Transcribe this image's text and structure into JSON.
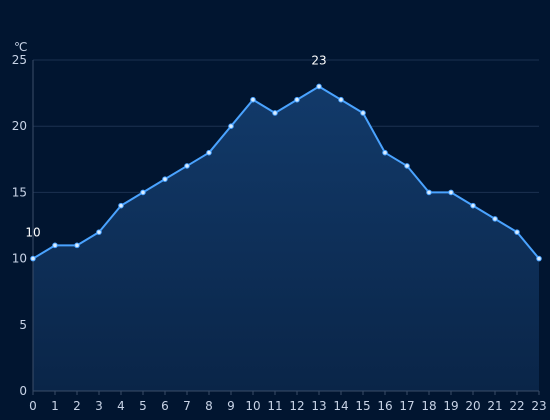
{
  "colors": {
    "background": "#011530",
    "line": "#4aa3ff",
    "area_top": "#123a6a",
    "area_bottom": "#0a2548",
    "point_fill": "#d9ecff",
    "grid": "#1c3150",
    "label": "#c8d3e6",
    "data_label": "#ffffff"
  },
  "chart_data": {
    "type": "area",
    "unit": "℃",
    "x": [
      "0",
      "1",
      "2",
      "3",
      "4",
      "5",
      "6",
      "7",
      "8",
      "9",
      "10",
      "11",
      "12",
      "13",
      "14",
      "15",
      "16",
      "17",
      "18",
      "19",
      "20",
      "21",
      "22",
      "23"
    ],
    "series": [
      {
        "values": [
          10,
          11,
          11,
          12,
          14,
          15,
          16,
          17,
          18,
          20,
          22,
          21,
          22,
          23,
          22,
          21,
          18,
          17,
          15,
          15,
          14,
          13,
          12,
          10
        ]
      }
    ],
    "ylim": [
      0,
      25
    ],
    "yticks": [
      "0",
      "5",
      "10",
      "15",
      "20",
      "25"
    ],
    "grid": true,
    "annotations": [
      {
        "x": "0",
        "text": "10"
      },
      {
        "x": "13",
        "text": "23"
      }
    ]
  }
}
